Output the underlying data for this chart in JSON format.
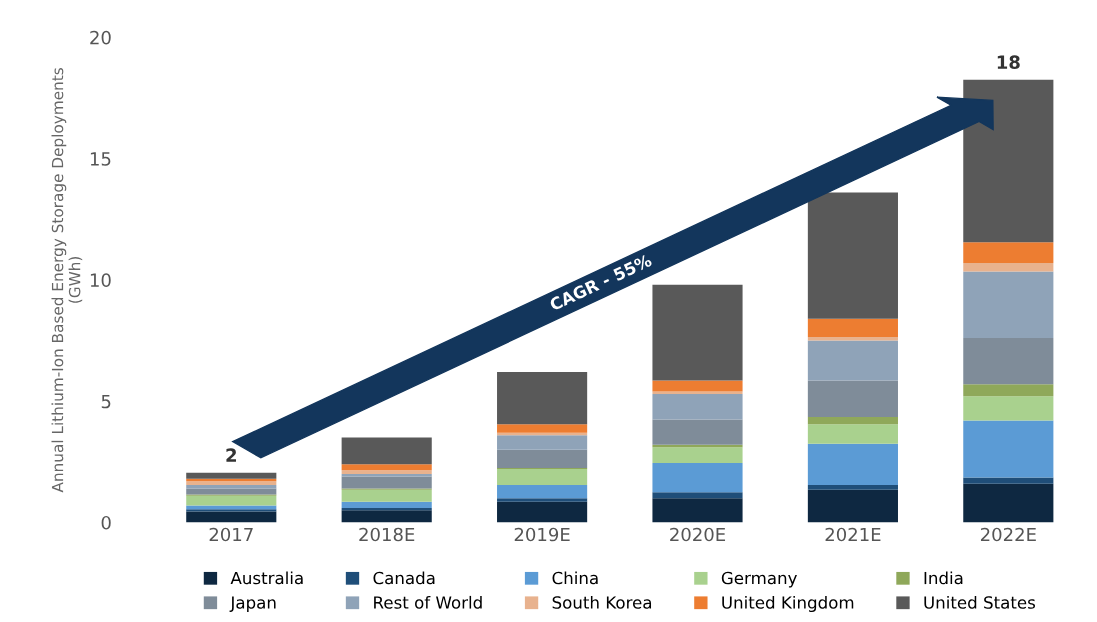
{
  "chart_data": {
    "type": "bar",
    "stacked": true,
    "ylabel": "Annual Lithium-Ion Based Energy Storage Deployments\n(GWh)",
    "categories": [
      "2017",
      "2018E",
      "2019E",
      "2020E",
      "2021E",
      "2022E"
    ],
    "series": [
      {
        "name": "Australia",
        "color": "#0e2841",
        "values": [
          0.45,
          0.5,
          0.85,
          1.0,
          1.35,
          1.6
        ]
      },
      {
        "name": "Canada",
        "color": "#1f4e79",
        "values": [
          0.1,
          0.1,
          0.15,
          0.25,
          0.2,
          0.25
        ]
      },
      {
        "name": "China",
        "color": "#5b9bd5",
        "values": [
          0.15,
          0.25,
          0.55,
          1.2,
          1.7,
          2.35
        ]
      },
      {
        "name": "Germany",
        "color": "#a9d18e",
        "values": [
          0.4,
          0.5,
          0.65,
          0.65,
          0.8,
          1.0
        ]
      },
      {
        "name": "India",
        "color": "#8fa85a",
        "values": [
          0.05,
          0.05,
          0.05,
          0.1,
          0.3,
          0.5
        ]
      },
      {
        "name": "Japan",
        "color": "#7f8c99",
        "values": [
          0.25,
          0.5,
          0.75,
          1.05,
          1.5,
          1.9
        ]
      },
      {
        "name": "Rest of World",
        "color": "#8fa3b8",
        "values": [
          0.15,
          0.1,
          0.6,
          1.05,
          1.65,
          2.75
        ]
      },
      {
        "name": "South Korea",
        "color": "#e8b28e",
        "values": [
          0.15,
          0.15,
          0.1,
          0.1,
          0.15,
          0.35
        ]
      },
      {
        "name": "United Kingdom",
        "color": "#ed7d31",
        "values": [
          0.1,
          0.25,
          0.35,
          0.45,
          0.75,
          0.85
        ]
      },
      {
        "name": "United States",
        "color": "#595959",
        "values": [
          0.25,
          1.1,
          2.15,
          3.95,
          5.2,
          6.7
        ]
      }
    ],
    "totals": [
      "2",
      null,
      null,
      null,
      null,
      "18"
    ],
    "annotations": [
      "CAGR - 55%"
    ],
    "ylim": [
      0,
      20
    ],
    "yticks": [
      0,
      5,
      10,
      15,
      20
    ],
    "grid": false,
    "legend": "bottom"
  }
}
